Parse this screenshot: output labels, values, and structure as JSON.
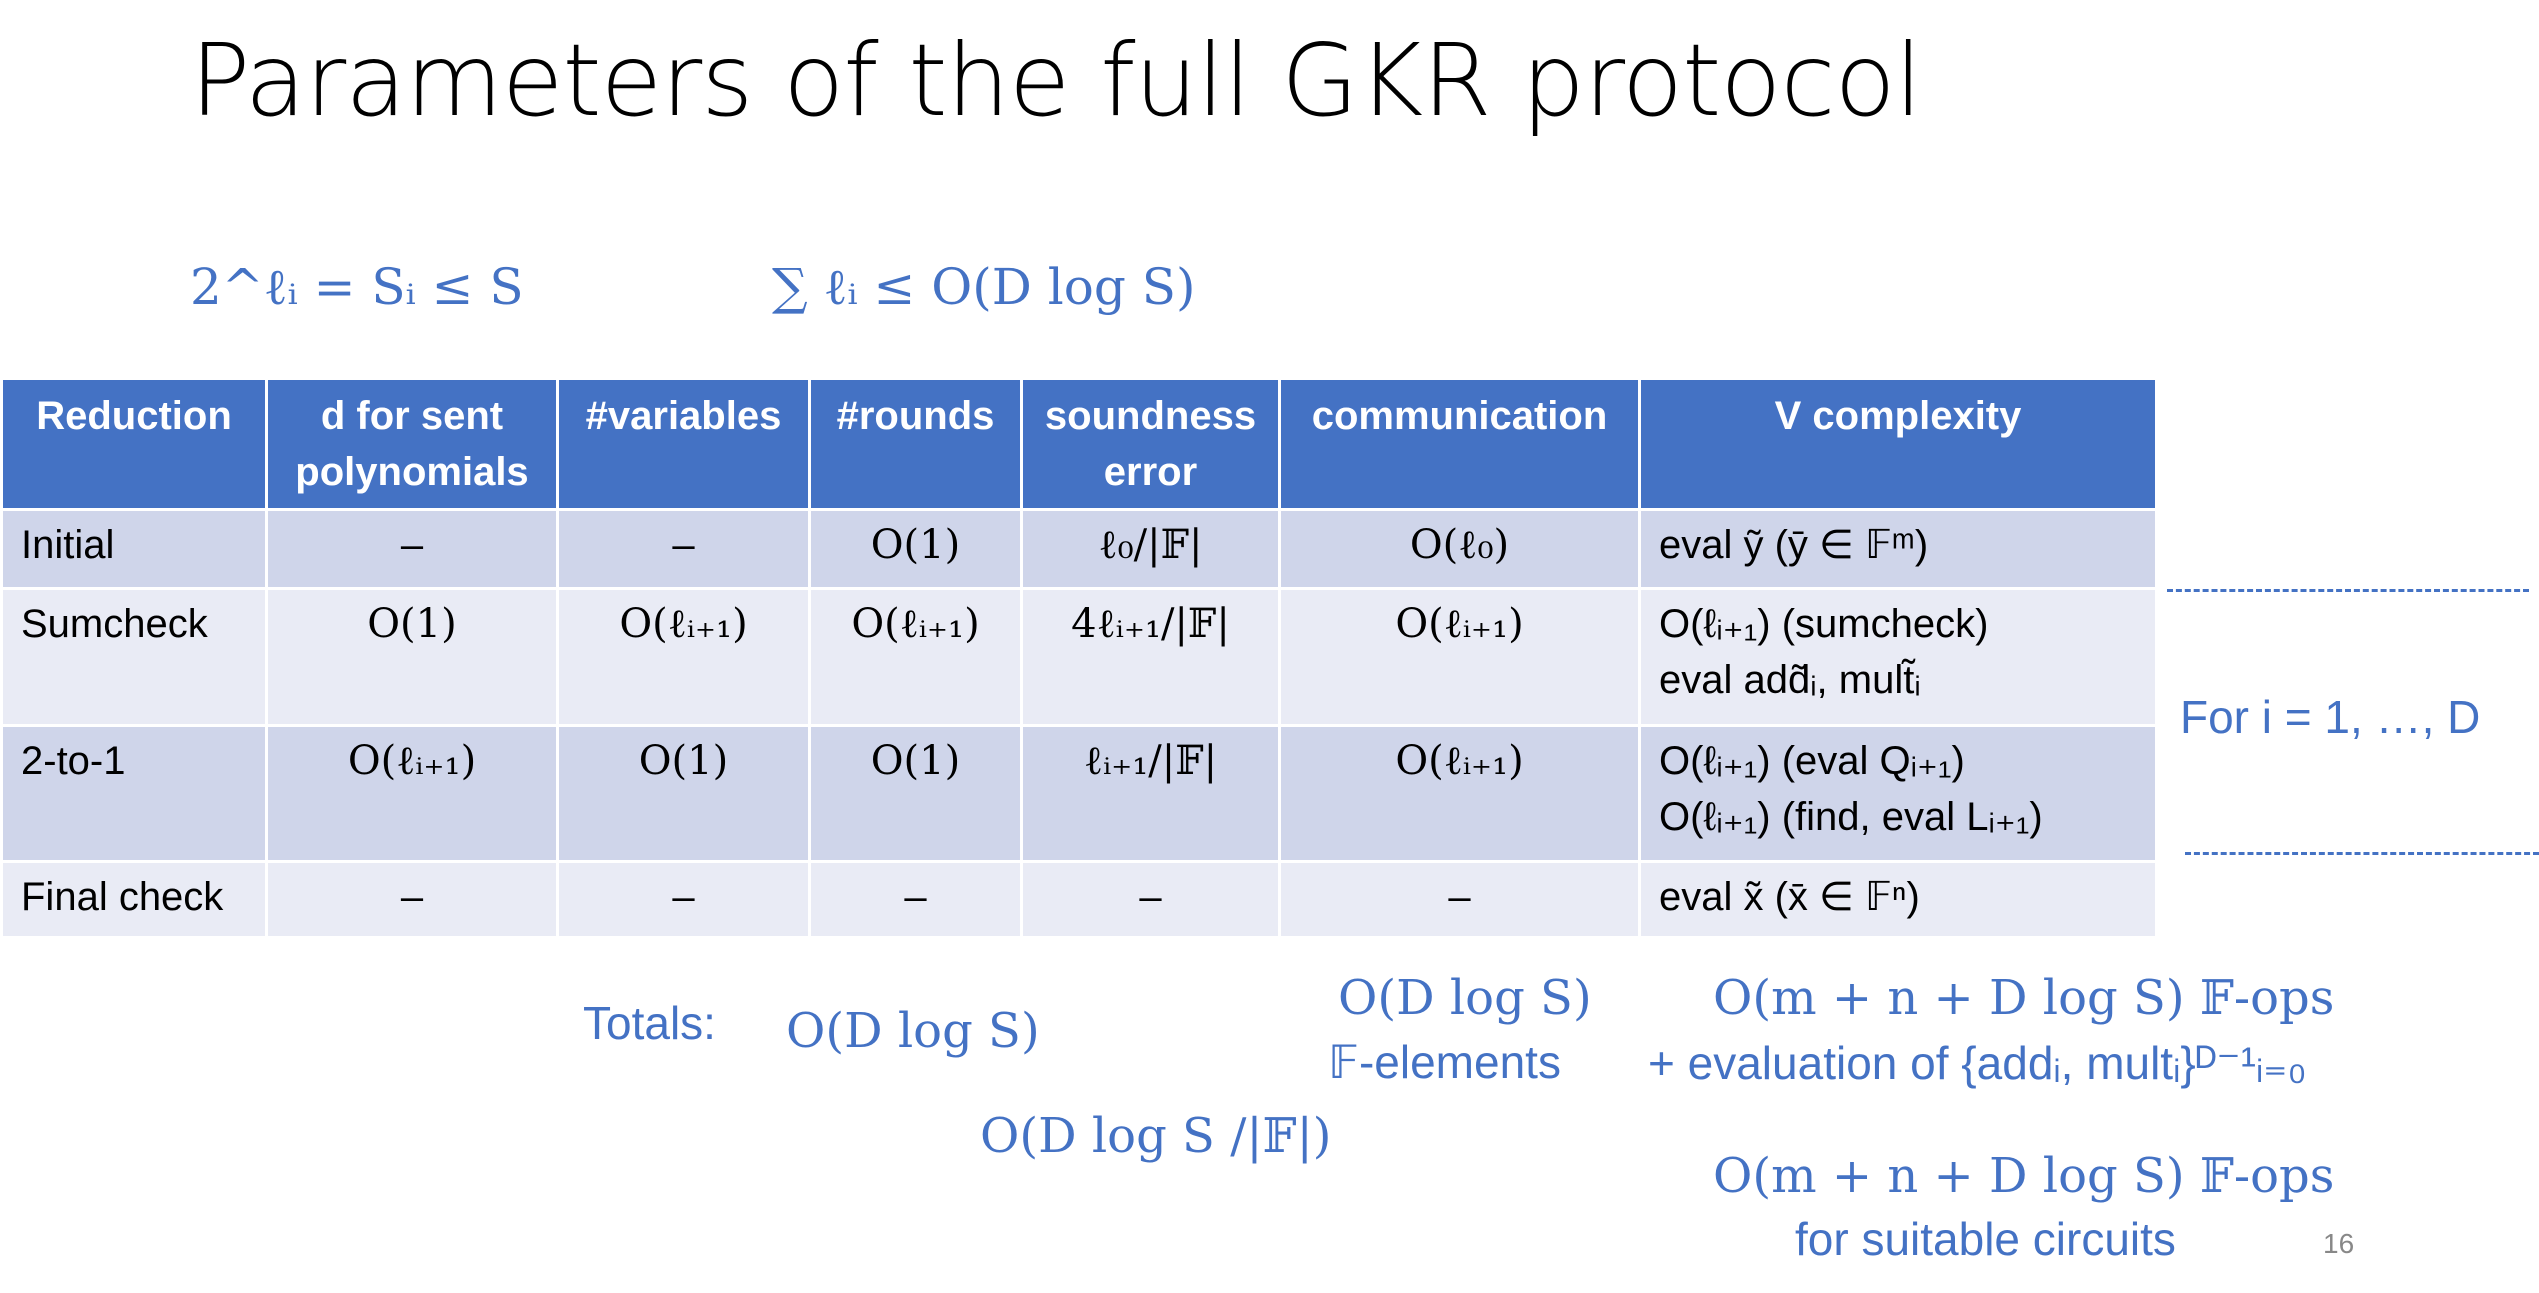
{
  "title": "Parameters of the full GKR protocol",
  "formulas": {
    "left": "2^ℓᵢ = Sᵢ ≤ S",
    "right": "∑ ℓᵢ ≤ O(D log S)"
  },
  "table": {
    "headers": {
      "reduction": "Reduction",
      "degree": "d for sent polynomials",
      "variables": "#variables",
      "rounds": "#rounds",
      "soundness": "soundness error",
      "communication": "communication",
      "v_complexity": "V complexity"
    },
    "rows": {
      "initial": {
        "reduction": "Initial",
        "degree": "–",
        "variables": "–",
        "rounds": "O(1)",
        "soundness": "ℓ₀/|𝔽|",
        "communication": "O(ℓ₀)",
        "v_complexity": "eval ỹ (ȳ ∈ 𝔽ᵐ)"
      },
      "sumcheck": {
        "reduction": "Sumcheck",
        "degree": "O(1)",
        "variables": "O(ℓᵢ₊₁)",
        "rounds": "O(ℓᵢ₊₁)",
        "soundness": "4ℓᵢ₊₁/|𝔽|",
        "communication": "O(ℓᵢ₊₁)",
        "v_complexity_1": "O(ℓᵢ₊₁) (sumcheck)",
        "v_complexity_2": "eval add̃ᵢ, mult̃ᵢ"
      },
      "two_to_one": {
        "reduction": "2-to-1",
        "degree": "O(ℓᵢ₊₁)",
        "variables": "O(1)",
        "rounds": "O(1)",
        "soundness": "ℓᵢ₊₁/|𝔽|",
        "communication": "O(ℓᵢ₊₁)",
        "v_complexity_1": "O(ℓᵢ₊₁) (eval Qᵢ₊₁)",
        "v_complexity_2": "O(ℓᵢ₊₁) (find, eval Lᵢ₊₁)"
      },
      "final": {
        "reduction": "Final check",
        "degree": "–",
        "variables": "–",
        "rounds": "–",
        "soundness": "–",
        "communication": "–",
        "v_complexity": "eval x̃ (x̄ ∈ 𝔽ⁿ)"
      }
    }
  },
  "for_label": "For i = 1, …, D",
  "totals": {
    "label": "Totals:",
    "rounds": "O(D log S)",
    "soundness": "O(D log S /|𝔽|)",
    "communication_1": "O(D log S)",
    "communication_2": "𝔽-elements",
    "v_complexity_1": "O(m + n + D log S) 𝔽-ops",
    "v_complexity_2": "+ evaluation of {addᵢ, multᵢ}ᴰ⁻¹ᵢ₌₀",
    "v_complexity_3": "O(m + n + D log S) 𝔽-ops",
    "v_complexity_4": "for suitable circuits"
  },
  "page_number": "16",
  "colors": {
    "header_bg": "#4472c4",
    "row_dark": "#cfd5ea",
    "row_light": "#e9ebf5",
    "accent_text": "#4472c4"
  }
}
